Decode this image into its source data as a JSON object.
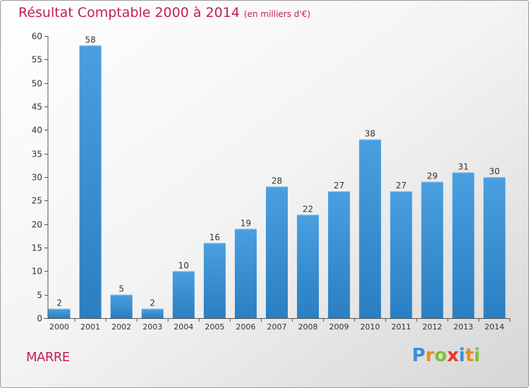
{
  "header": {
    "title": "Résultat Comptable 2000 à 2014",
    "subtitle": "(en milliers d'€)"
  },
  "location": "MARRE",
  "brand": {
    "letters": [
      "P",
      "r",
      "o",
      "x",
      "i",
      "t",
      "i"
    ]
  },
  "colors": {
    "bar": "#4a9fe0",
    "bar_dark": "#2a7fc2",
    "title": "#c0205a",
    "axis": "#333333"
  },
  "chart_data": {
    "type": "bar",
    "title": "Résultat Comptable 2000 à 2014",
    "subtitle": "(en milliers d'€)",
    "xlabel": "",
    "ylabel": "",
    "categories": [
      "2000",
      "2001",
      "2002",
      "2003",
      "2004",
      "2005",
      "2006",
      "2007",
      "2008",
      "2009",
      "2010",
      "2011",
      "2012",
      "2013",
      "2014"
    ],
    "values": [
      2,
      58,
      5,
      2,
      10,
      16,
      19,
      28,
      22,
      27,
      38,
      27,
      29,
      31,
      30
    ],
    "ylim": [
      0,
      60
    ],
    "yticks": [
      0,
      5,
      10,
      15,
      20,
      25,
      30,
      35,
      40,
      45,
      50,
      55,
      60
    ],
    "grid": false,
    "legend": "none"
  }
}
